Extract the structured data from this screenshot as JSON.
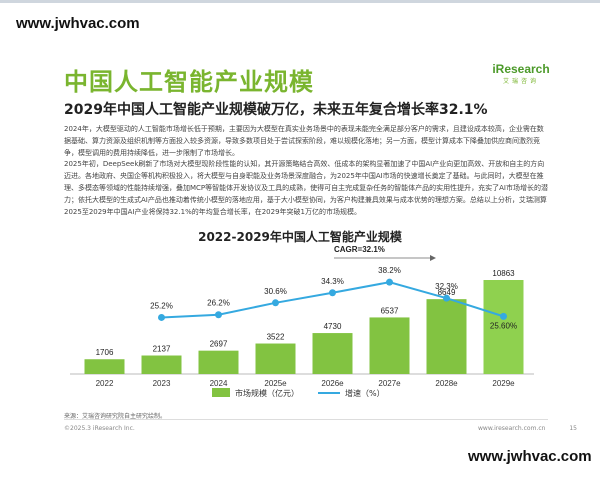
{
  "watermark": {
    "top": "www.jwhvac.com",
    "bottom": "www.jwhvac.com"
  },
  "page": {
    "title": "中国人工智能产业规模",
    "subtitle": "2029年中国人工智能产业规模破万亿，未来五年复合增长率32.1%",
    "logo": {
      "name": "iResearch",
      "cn": "艾瑞咨询"
    },
    "paragraphs": [
      "2024年，大模型驱动的人工智能市场增长低于预期，主要因为大模型在真实业务场景中的表现未能完全满足部分客户的需求，且建设成本较高，企业需在数据基础、算力资源及组织机制等方面投入较多资源，导致多数项目处于尝试探索阶段，难以规模化落地；另一方面，模型计算成本下降叠加供应商间激烈竞争，模型调用的费用持续降低，进一步限制了市场增长。",
      "2025年初，DeepSeek刷新了市场对大模型现阶段性能的认知，其开源策略结合高效、低成本的架构显著加速了中国AI产业向更加高效、开放和自主的方向迈进。各地政府、央国企等机构积极投入，将大模型与自身职能及业务场景深度融合，为2025年中国AI市场的快速增长奠定了基础。与此同时，大模型在推理、多模态等领域的性能持续增强，叠加MCP等智能体开发协议及工具的成熟，使得可自主完成复杂任务的智能体产品的实用性提升，充实了AI市场增长的潜力；依托大模型的生成式AI产品也推动着传统小模型的落地应用，基于大小模型协同，为客户构建兼具效果与成本优势的理想方案。总结以上分析，艾瑞测算2025至2029年中国AI产业将保持32.1%的年均复合增长率，在2029年突破1万亿的市场规模。"
    ],
    "source": "来源：艾瑞咨询研究院自主研究绘制。",
    "copyright": "©2025.3 iResearch Inc.",
    "website": "www.iresearch.com.cn",
    "page_number": "15"
  },
  "chart_data": {
    "type": "bar",
    "title": "2022-2029年中国人工智能产业规模",
    "categories": [
      "2022",
      "2023",
      "2024",
      "2025e",
      "2026e",
      "2027e",
      "2028e",
      "2029e"
    ],
    "series": [
      {
        "name": "市场规模（亿元）",
        "type": "bar",
        "values": [
          1706,
          2137,
          2697,
          3522,
          4730,
          6537,
          8649,
          10863
        ]
      },
      {
        "name": "增速（%）",
        "type": "line",
        "values": [
          null,
          25.2,
          26.2,
          30.6,
          34.3,
          38.2,
          32.3,
          25.6
        ],
        "labels": [
          "",
          "25.2%",
          "26.2%",
          "30.6%",
          "34.3%",
          "38.2%",
          "32.3%",
          "25.60%"
        ]
      }
    ],
    "annotation": "CAGR=32.1%",
    "colors": {
      "bar": "#82c341",
      "bar_last": "#8fd14f",
      "line": "#35a9e0"
    },
    "legend": "bottom-center"
  }
}
